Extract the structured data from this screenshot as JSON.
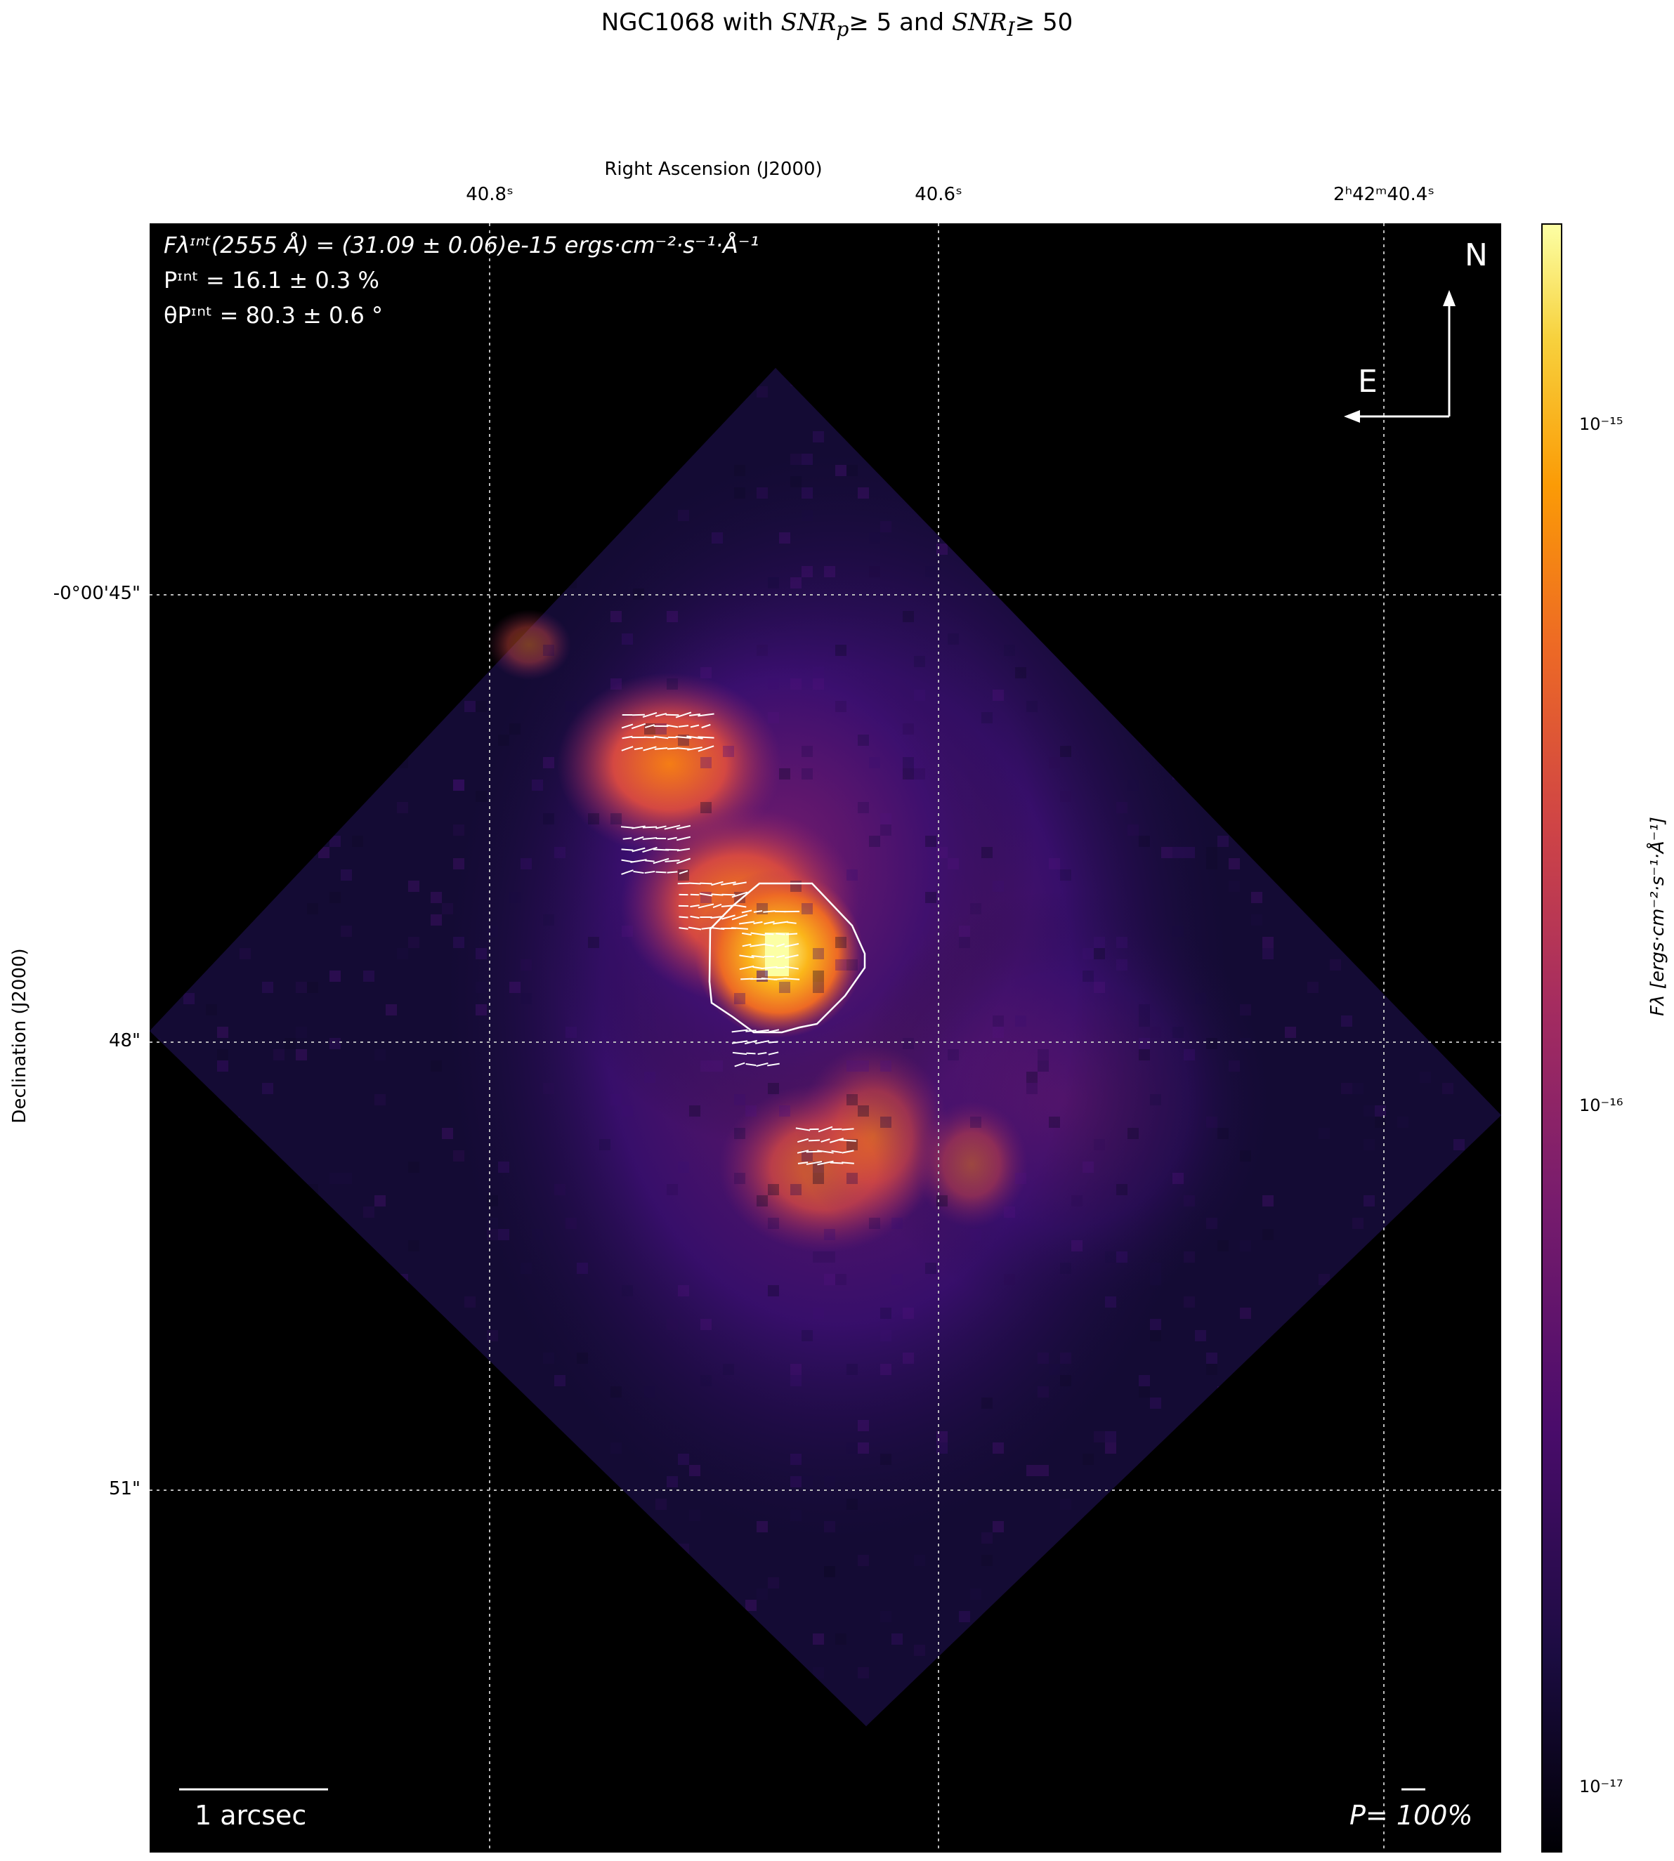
{
  "figure": {
    "title_prefix": "NGC1068 with ",
    "title_snr_p": "SNR",
    "title_snr_p_sub": "p",
    "title_mid": "≥ 5 and ",
    "title_snr_i": "SNR",
    "title_snr_i_sub": "I",
    "title_suffix": "≥ 50"
  },
  "axes": {
    "ra_label": "Right Ascension (J2000)",
    "dec_label": "Declination (J2000)",
    "ra_ticks": [
      "40.8ˢ",
      "40.6ˢ",
      "2ʰ42ᵐ40.4ˢ"
    ],
    "dec_ticks": [
      "-0°00'45\"",
      "48\"",
      "51\""
    ]
  },
  "info": {
    "flux_line": "Fλᶦⁿᵗ(2555 Å) = (31.09 ± 0.06)e-15 ergs·cm⁻²·s⁻¹·Å⁻¹",
    "p_line": "Pᶦⁿᵗ = 16.1 ± 0.3 %",
    "theta_line": "θPᶦⁿᵗ = 80.3 ± 0.6 °"
  },
  "compass": {
    "north": "N",
    "east": "E"
  },
  "scale_bar": {
    "label": "1 arcsec"
  },
  "pol_scale": {
    "label": "P= 100%"
  },
  "colorbar": {
    "label": "Fλ [ergs·cm⁻²·s⁻¹·Å⁻¹]",
    "ticks": [
      "10⁻¹⁵",
      "10⁻¹⁶",
      "10⁻¹⁷"
    ],
    "colormap": "inferno",
    "scale": "log"
  },
  "chart_data": {
    "type": "heatmap",
    "object": "NGC1068",
    "wavelength_angstrom": 2555,
    "colormap": "inferno",
    "color_scale": "log",
    "color_range": [
      8e-18,
      2e-15
    ],
    "integrated_flux": 3.109e-14,
    "integrated_flux_err": 6e-17,
    "integrated_P_percent": 16.1,
    "integrated_P_err": 0.3,
    "integrated_theta_deg": 80.3,
    "integrated_theta_err": 0.6,
    "snr_p_min": 5,
    "snr_i_min": 50,
    "ra_ticks_s": [
      40.8,
      40.6,
      40.4
    ],
    "dec_ticks_arcsec": [
      -45,
      -48,
      -51
    ],
    "peak_flux": 1.9e-15,
    "grid": true
  }
}
